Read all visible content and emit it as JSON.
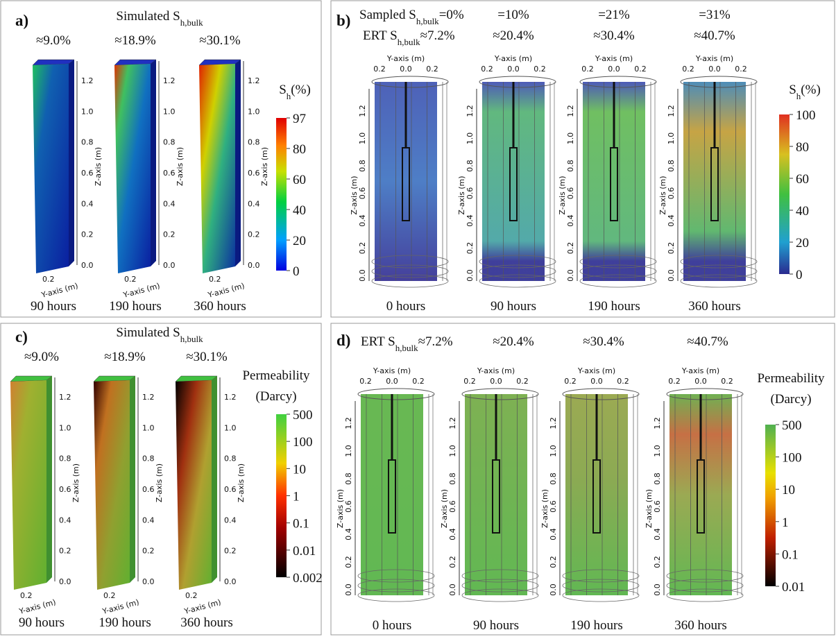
{
  "axis_labels": {
    "y": "Y-axis (m)",
    "z": "Z-axis (m)"
  },
  "z_ticks": [
    "0.0",
    "0.2",
    "0.4",
    "0.6",
    "0.8",
    "1.0",
    "1.2"
  ],
  "y_ticks": [
    "0.2",
    "0.0",
    "0.2"
  ],
  "panels": [
    {
      "label": "a)",
      "title": "Simulated S",
      "title_sub": "h,bulk",
      "columns": [
        {
          "saturation": "≈9.0%",
          "time": "90 hours"
        },
        {
          "saturation": "≈18.9%",
          "time": "190 hours"
        },
        {
          "saturation": "≈30.1%",
          "time": "360 hours"
        }
      ],
      "colorbar_title": "S",
      "colorbar_title_sub": "h",
      "colorbar_unit": "(%)",
      "colorbar_ticks": [
        "97",
        "80",
        "60",
        "40",
        "20",
        "0"
      ]
    },
    {
      "label": "b)",
      "row1_prefix": "Sampled S",
      "row1_sub": "h,bulk",
      "row2_prefix": "ERT S",
      "row2_sub": "h,bulk",
      "columns": [
        {
          "sampled": "=0%",
          "ert": "≈7.2%",
          "time": "0 hours"
        },
        {
          "sampled": "=10%",
          "ert": "≈20.4%",
          "time": "90 hours"
        },
        {
          "sampled": "=21%",
          "ert": "≈30.4%",
          "time": "190 hours"
        },
        {
          "sampled": "=31%",
          "ert": "≈40.7%",
          "time": "360 hours"
        }
      ],
      "colorbar_title": "S",
      "colorbar_title_sub": "h",
      "colorbar_unit": "(%)",
      "colorbar_ticks": [
        "100",
        "80",
        "60",
        "40",
        "20",
        "0"
      ]
    },
    {
      "label": "c)",
      "title": "Simulated S",
      "title_sub": "h,bulk",
      "columns": [
        {
          "saturation": "≈9.0%",
          "time": "90 hours"
        },
        {
          "saturation": "≈18.9%",
          "time": "190 hours"
        },
        {
          "saturation": "≈30.1%",
          "time": "360 hours"
        }
      ],
      "colorbar_title": "Permeability",
      "colorbar_unit": "(Darcy)",
      "colorbar_ticks": [
        "500",
        "100",
        "10",
        "1",
        "0.1",
        "0.01",
        "0.002"
      ]
    },
    {
      "label": "d)",
      "row2_prefix": "ERT S",
      "row2_sub": "h,bulk",
      "columns": [
        {
          "ert": "≈7.2%",
          "time": "0 hours"
        },
        {
          "ert": "≈20.4%",
          "time": "90 hours"
        },
        {
          "ert": "≈30.4%",
          "time": "190 hours"
        },
        {
          "ert": "≈40.7%",
          "time": "360 hours"
        }
      ],
      "colorbar_title": "Permeability",
      "colorbar_unit": "(Darcy)",
      "colorbar_ticks": [
        "500",
        "100",
        "10",
        "1",
        "0.1",
        "0.01"
      ]
    }
  ]
}
